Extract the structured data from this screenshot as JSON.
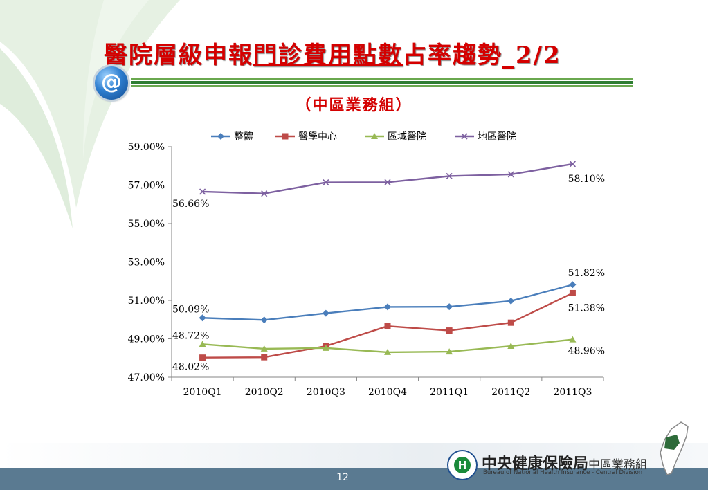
{
  "slide": {
    "title_part1": "醫院層級申報",
    "title_part2": "門診費用點數",
    "title_part3": "占率趨勢_2/2",
    "subtitle": "（中區業務組）",
    "page_number": "12",
    "logo_text": "@"
  },
  "org": {
    "name_main": "中央健康保險局",
    "name_division": "中區業務組",
    "name_en": "Bureau of National Health Insurance - Central Division"
  },
  "colors": {
    "title": "#d40000",
    "series_1": "#4a7ebb",
    "series_2": "#be4b48",
    "series_3": "#98b954",
    "series_4": "#7d60a0"
  },
  "chart_data": {
    "type": "line",
    "categories": [
      "2010Q1",
      "2010Q2",
      "2010Q3",
      "2010Q4",
      "2011Q1",
      "2011Q2",
      "2011Q3"
    ],
    "ylim": [
      47,
      59
    ],
    "yticks": [
      "47.00%",
      "49.00%",
      "51.00%",
      "53.00%",
      "55.00%",
      "57.00%",
      "59.00%"
    ],
    "legend_position": "top",
    "grid": false,
    "series": [
      {
        "name": "整體",
        "marker": "diamond",
        "color": "#4a7ebb",
        "values": [
          50.09,
          49.98,
          50.33,
          50.66,
          50.67,
          50.97,
          51.82
        ],
        "labels": [
          {
            "index": 0,
            "text": "50.09%"
          },
          {
            "index": 6,
            "text": "51.82%"
          }
        ]
      },
      {
        "name": "醫學中心",
        "marker": "square",
        "color": "#be4b48",
        "values": [
          48.02,
          48.04,
          48.62,
          49.66,
          49.43,
          49.84,
          51.38
        ],
        "labels": [
          {
            "index": 0,
            "text": "48.02%"
          },
          {
            "index": 6,
            "text": "51.38%"
          }
        ]
      },
      {
        "name": "區域醫院",
        "marker": "triangle",
        "color": "#98b954",
        "values": [
          48.72,
          48.48,
          48.52,
          48.3,
          48.33,
          48.62,
          48.96
        ],
        "labels": [
          {
            "index": 0,
            "text": "48.72%"
          },
          {
            "index": 6,
            "text": "48.96%"
          }
        ]
      },
      {
        "name": "地區醫院",
        "marker": "x",
        "color": "#7d60a0",
        "values": [
          56.66,
          56.56,
          57.14,
          57.15,
          57.47,
          57.56,
          58.1
        ],
        "labels": [
          {
            "index": 0,
            "text": "56.66%"
          },
          {
            "index": 6,
            "text": "58.10%"
          }
        ]
      }
    ]
  }
}
